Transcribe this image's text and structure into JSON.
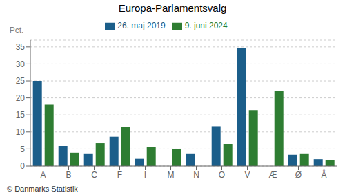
{
  "chart_data": {
    "type": "bar",
    "title": "Europa-Parlamentsvalg",
    "ylabel": "Pct.",
    "annotations": [
      "© Danmarks Statistik"
    ],
    "categories": [
      "A",
      "B",
      "C",
      "F",
      "I",
      "M",
      "N",
      "O",
      "V",
      "Æ",
      "Ø",
      "Å"
    ],
    "series": [
      {
        "name": "26. maj 2019",
        "color": "#1b5e8a",
        "values": [
          25.0,
          5.9,
          3.7,
          8.6,
          2.1,
          0.0,
          3.7,
          11.7,
          34.6,
          0.0,
          3.3,
          2.0
        ]
      },
      {
        "name": "9. juni 2024",
        "color": "#2e7d32",
        "values": [
          18.0,
          3.9,
          6.7,
          11.4,
          5.6,
          4.9,
          0.0,
          6.5,
          16.4,
          22.0,
          3.7,
          1.8
        ]
      }
    ],
    "ylim": [
      0,
      37
    ],
    "yticks": [
      0,
      5,
      10,
      15,
      20,
      25,
      30,
      35
    ],
    "grid": true,
    "legend": "top"
  }
}
